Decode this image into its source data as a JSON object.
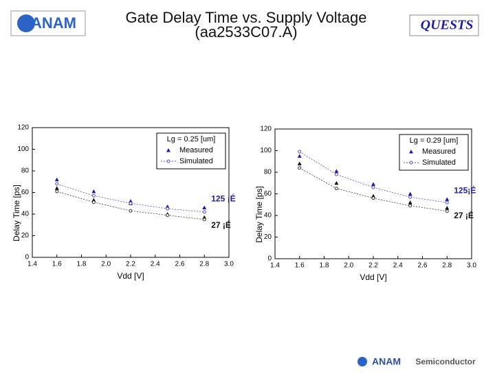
{
  "header": {
    "logo": "ANAM",
    "title_line1": "Gate Delay Time  vs.  Supply Voltage",
    "title_line2": "(aa2533C07.A)",
    "brand": "QUESTS",
    "footer_logo": "ANAM",
    "footer_text": "Semiconductor"
  },
  "chart_data": [
    {
      "type": "scatter-line",
      "legend_title": "Lg = 0.25 [um]",
      "x_label": "Vdd [V]",
      "y_label": "Delay Time [ps]",
      "x": [
        1.6,
        1.9,
        2.2,
        2.5,
        2.8
      ],
      "xlim": [
        1.4,
        3.0
      ],
      "xticks": [
        1.4,
        1.6,
        1.8,
        {
          "value": 2,
          "label": "2.0"
        },
        2.2,
        2.4,
        2.6,
        2.8,
        {
          "value": 3,
          "label": "3.0"
        }
      ],
      "ylim": [
        0,
        120
      ],
      "yticks": [
        0,
        20,
        40,
        60,
        80,
        100,
        120
      ],
      "annotations": [
        "125 ¡É",
        "27 ¡É"
      ],
      "series": [
        {
          "name": "Measured",
          "color": "#1c1caa",
          "values": [
            72,
            61,
            52,
            47,
            46
          ]
        },
        {
          "color": "#111111",
          "values": [
            64,
            53,
            50,
            40,
            37
          ]
        },
        {
          "name": "Simulated",
          "color": "#4a4ad0",
          "values": [
            68,
            57,
            50,
            45,
            42
          ]
        },
        {
          "color": "#333333",
          "values": [
            61,
            51,
            43,
            39,
            35
          ]
        }
      ]
    },
    {
      "type": "scatter-line",
      "legend_title": "Lg = 0.29 [um]",
      "x_label": "Vdd [V]",
      "y_label": "Delay Time [ps]",
      "x": [
        1.6,
        1.9,
        2.2,
        2.5,
        2.8
      ],
      "xlim": [
        1.4,
        3.0
      ],
      "xticks": [
        1.4,
        1.6,
        1.8,
        {
          "value": 2,
          "label": "2.0"
        },
        2.2,
        2.4,
        2.6,
        2.8,
        {
          "value": 3,
          "label": "3.0"
        }
      ],
      "ylim": [
        0,
        120
      ],
      "yticks": [
        0,
        20,
        40,
        60,
        80,
        100,
        120
      ],
      "annotations": [
        "125¡É",
        "27 ¡É"
      ],
      "series": [
        {
          "name": "Measured",
          "color": "#1c1caa",
          "values": [
            95,
            81,
            69,
            60,
            55
          ]
        },
        {
          "color": "#111111",
          "values": [
            88,
            70,
            58,
            52,
            47
          ]
        },
        {
          "name": "Simulated",
          "color": "#4a4ad0",
          "values": [
            99,
            78,
            66,
            57,
            52
          ]
        },
        {
          "color": "#333333",
          "values": [
            84,
            65,
            56,
            49,
            44
          ]
        }
      ]
    }
  ]
}
